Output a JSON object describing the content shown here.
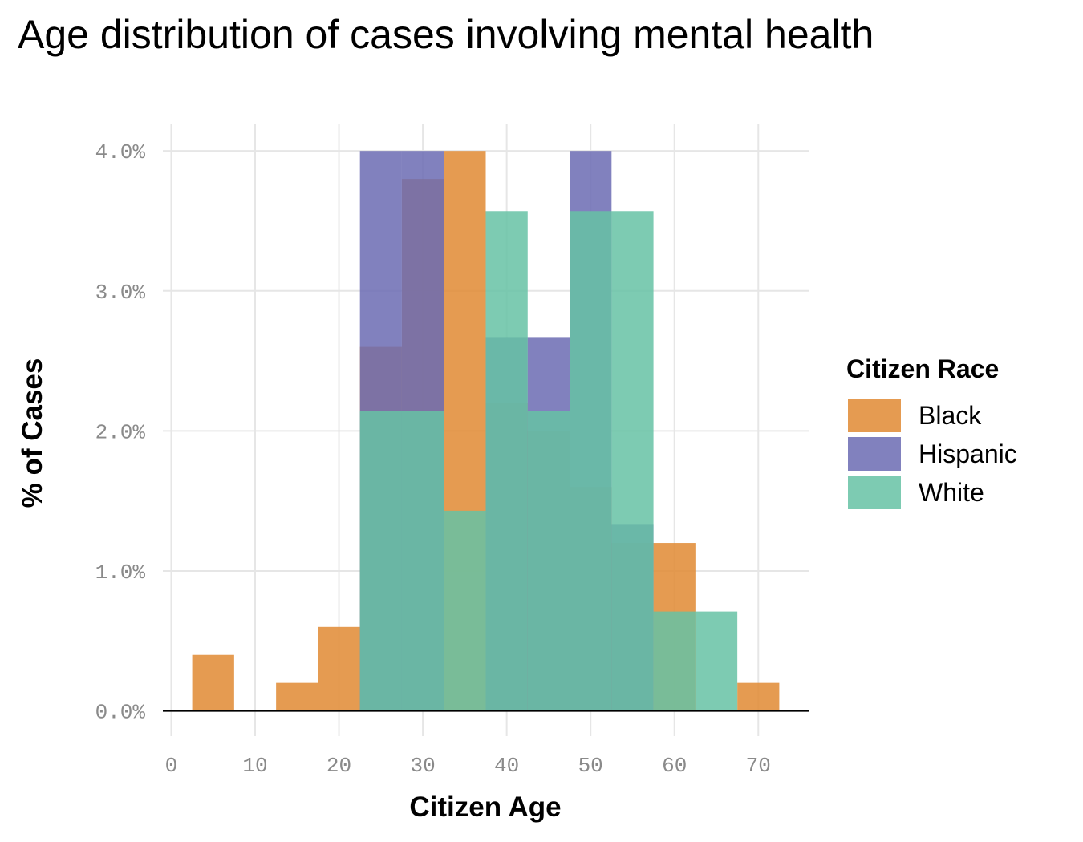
{
  "chart_data": {
    "type": "bar",
    "title": "Age distribution of cases involving mental health",
    "xlabel": "Citizen Age",
    "ylabel": "% of Cases",
    "xlim": [
      -1,
      76
    ],
    "ylim": [
      -0.18,
      4.19
    ],
    "x_ticks": [
      0,
      10,
      20,
      30,
      40,
      50,
      60,
      70
    ],
    "x_tick_labels": [
      "0",
      "10",
      "20",
      "30",
      "40",
      "50",
      "60",
      "70"
    ],
    "y_ticks": [
      0,
      1,
      2,
      3,
      4
    ],
    "y_tick_labels": [
      "0.0%",
      "1.0%",
      "2.0%",
      "3.0%",
      "4.0%"
    ],
    "grid": true,
    "legend": {
      "title": "Citizen Race",
      "placement": "right"
    },
    "bin_width": 5,
    "series": [
      {
        "name": "Black",
        "color": "#E08A33",
        "bins": [
          {
            "x0": 2.5,
            "x1": 7.5,
            "value": 0.4
          },
          {
            "x0": 12.5,
            "x1": 17.5,
            "value": 0.2
          },
          {
            "x0": 17.5,
            "x1": 22.5,
            "value": 0.6
          },
          {
            "x0": 22.5,
            "x1": 27.5,
            "value": 2.6
          },
          {
            "x0": 27.5,
            "x1": 32.5,
            "value": 3.8
          },
          {
            "x0": 32.5,
            "x1": 37.5,
            "value": 4.0
          },
          {
            "x0": 37.5,
            "x1": 42.5,
            "value": 2.2
          },
          {
            "x0": 42.5,
            "x1": 47.5,
            "value": 2.0
          },
          {
            "x0": 47.5,
            "x1": 52.5,
            "value": 1.6
          },
          {
            "x0": 52.5,
            "x1": 57.5,
            "value": 1.2
          },
          {
            "x0": 57.5,
            "x1": 62.5,
            "value": 1.2
          },
          {
            "x0": 67.5,
            "x1": 72.5,
            "value": 0.2
          }
        ]
      },
      {
        "name": "Hispanic",
        "color": "#6B6BB3",
        "bins": [
          {
            "x0": 22.5,
            "x1": 27.5,
            "value": 4.0
          },
          {
            "x0": 27.5,
            "x1": 32.5,
            "value": 4.0
          },
          {
            "x0": 37.5,
            "x1": 42.5,
            "value": 2.67
          },
          {
            "x0": 42.5,
            "x1": 47.5,
            "value": 2.67
          },
          {
            "x0": 47.5,
            "x1": 52.5,
            "value": 4.0
          },
          {
            "x0": 52.5,
            "x1": 57.5,
            "value": 1.33
          }
        ]
      },
      {
        "name": "White",
        "color": "#66C2A5",
        "bins": [
          {
            "x0": 22.5,
            "x1": 27.5,
            "value": 2.14
          },
          {
            "x0": 27.5,
            "x1": 32.5,
            "value": 2.14
          },
          {
            "x0": 32.5,
            "x1": 37.5,
            "value": 1.43
          },
          {
            "x0": 37.5,
            "x1": 42.5,
            "value": 3.57
          },
          {
            "x0": 42.5,
            "x1": 47.5,
            "value": 2.14
          },
          {
            "x0": 47.5,
            "x1": 52.5,
            "value": 3.57
          },
          {
            "x0": 52.5,
            "x1": 57.5,
            "value": 3.57
          },
          {
            "x0": 57.5,
            "x1": 62.5,
            "value": 0.71
          },
          {
            "x0": 62.5,
            "x1": 67.5,
            "value": 0.71
          }
        ]
      }
    ]
  }
}
